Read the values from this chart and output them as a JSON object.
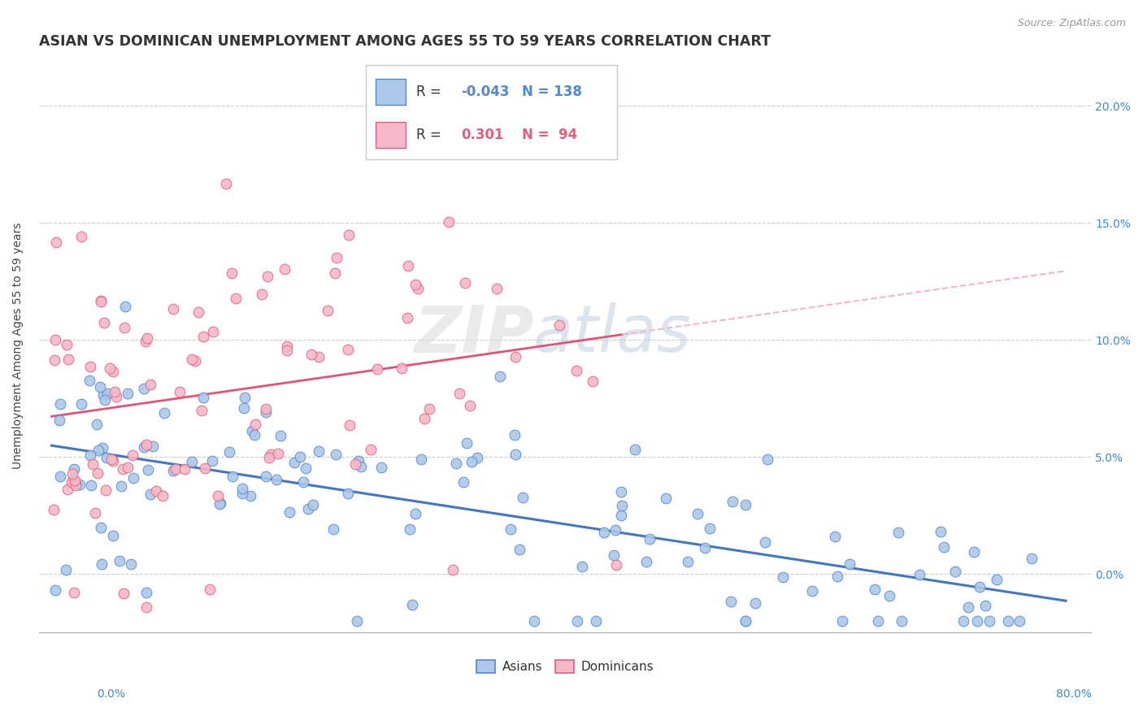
{
  "title": "ASIAN VS DOMINICAN UNEMPLOYMENT AMONG AGES 55 TO 59 YEARS CORRELATION CHART",
  "source_text": "Source: ZipAtlas.com",
  "ylabel": "Unemployment Among Ages 55 to 59 years",
  "xlim": [
    -0.01,
    0.82
  ],
  "ylim": [
    -0.025,
    0.22
  ],
  "yticks": [
    0.0,
    0.05,
    0.1,
    0.15,
    0.2
  ],
  "yticklabels": [
    "0.0%",
    "5.0%",
    "10.0%",
    "15.0%",
    "20.0%"
  ],
  "asian_color": "#adc8e8",
  "dominican_color": "#f5b8c8",
  "asian_edge_color": "#5588cc",
  "dominican_edge_color": "#e06080",
  "asian_line_color": "#4477bb",
  "dominican_line_color": "#dd5577",
  "asian_line_dash_color": "#f0b8cc",
  "asian_R": -0.043,
  "asian_N": 138,
  "dominican_R": 0.301,
  "dominican_N": 94,
  "background_color": "#ffffff",
  "watermark_zip": "ZIP",
  "watermark_atlas": "atlas",
  "title_fontsize": 12.5,
  "axis_label_fontsize": 10,
  "tick_fontsize": 10,
  "legend_fontsize": 12,
  "right_tick_color": "#4488cc",
  "bottom_label_color": "#4488cc"
}
